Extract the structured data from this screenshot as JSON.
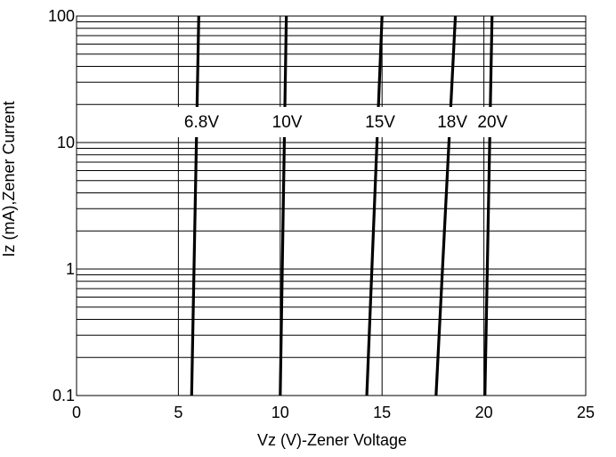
{
  "chart_data": {
    "type": "line",
    "xlabel": "Vz (V)-Zener Voltage",
    "ylabel": "Iz (mA),Zener Current",
    "xlim": [
      0,
      25
    ],
    "ylim": [
      0.1,
      100
    ],
    "y_scale": "log",
    "grid": true,
    "x_ticks": [
      "0",
      "5",
      "10",
      "15",
      "20",
      "25"
    ],
    "y_ticks": [
      "0.1",
      "1",
      "10",
      "100"
    ],
    "series": [
      {
        "name": "6.8V",
        "x": [
          5.65,
          6.0
        ],
        "y": [
          0.1,
          100
        ]
      },
      {
        "name": "10V",
        "x": [
          10.0,
          10.3
        ],
        "y": [
          0.1,
          100
        ]
      },
      {
        "name": "15V",
        "x": [
          14.25,
          15.0
        ],
        "y": [
          0.1,
          100
        ]
      },
      {
        "name": "18V",
        "x": [
          17.65,
          18.6
        ],
        "y": [
          0.1,
          100
        ]
      },
      {
        "name": "20V",
        "x": [
          20.05,
          20.4
        ],
        "y": [
          0.1,
          100
        ]
      }
    ]
  }
}
